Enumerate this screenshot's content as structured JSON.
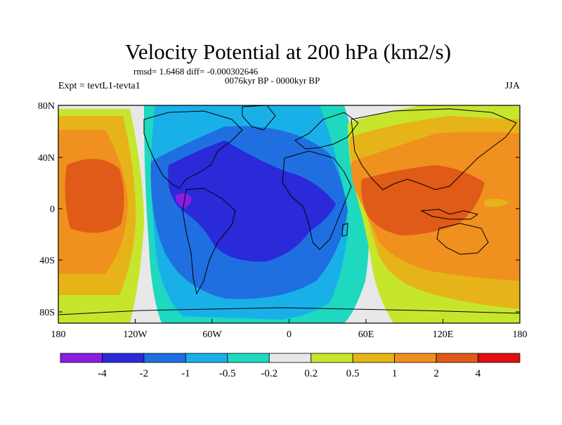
{
  "title": "Velocity Potential at 200 hPa (km2/s)",
  "stats_line": "rmsd= 1.6468 diff= -0.000302646",
  "period_line": "0076kyr BP - 0000kyr BP",
  "experiment_label": "Expt = tevtL1-tevta1",
  "season_label": "JJA",
  "axes": {
    "lat_ticks": [
      "80N",
      "40N",
      "0",
      "40S",
      "80S"
    ],
    "lon_ticks": [
      "180",
      "120W",
      "60W",
      "0",
      "60E",
      "120E",
      "180"
    ]
  },
  "colorbar": {
    "labels": [
      "-4",
      "-2",
      "-1",
      "-0.5",
      "-0.2",
      "0.2",
      "0.5",
      "1",
      "2",
      "4"
    ],
    "colors": [
      "#8a1ee0",
      "#2a2ad8",
      "#1f6fe0",
      "#19b0e8",
      "#1ed8c0",
      "#e8e8e8",
      "#c6e62e",
      "#e6b418",
      "#f0901e",
      "#e05a18",
      "#e01010"
    ]
  },
  "colors": {
    "land_outline": "#000000",
    "frame": "#000000"
  }
}
